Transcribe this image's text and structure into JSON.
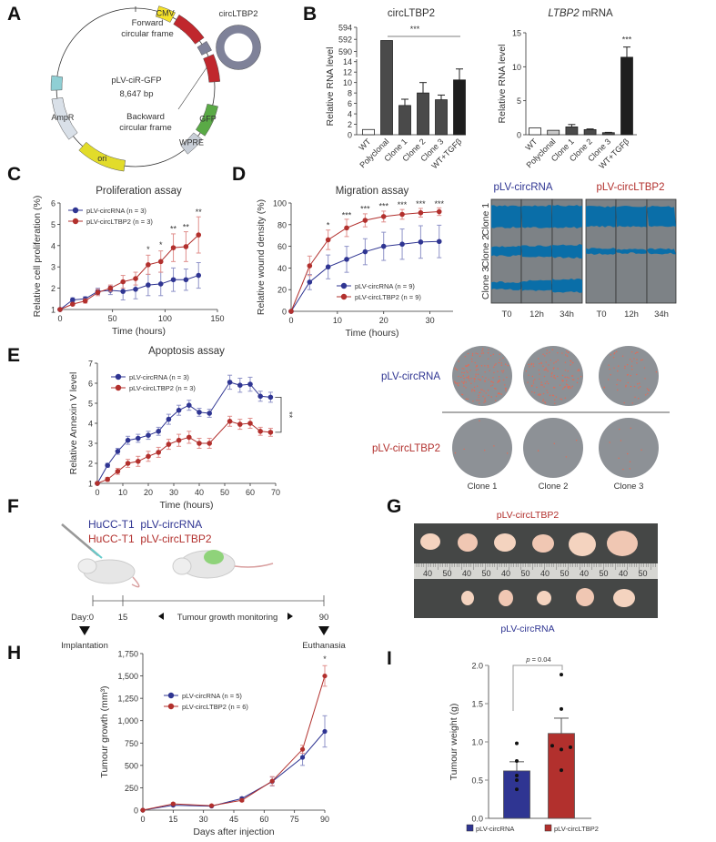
{
  "colors": {
    "blue": "#2f3592",
    "red": "#b2302d",
    "blue_light": "#8f93c8",
    "red_light": "#e08f8c"
  },
  "panel_letters": {
    "A": "A",
    "B": "B",
    "C": "C",
    "D": "D",
    "E": "E",
    "F": "F",
    "G": "G",
    "H": "H",
    "I": "I"
  },
  "plasmid": {
    "name": "pLV-ciR-GFP",
    "size": "8,647 bp",
    "forward_1": "Forward",
    "forward_2": "circular frame",
    "backward_1": "Backward",
    "backward_2": "circular frame",
    "circ_label": "circLTBP2",
    "features": [
      "CMV",
      "GFP",
      "WPRE",
      "ori",
      "AmpR"
    ]
  },
  "migration_images": {
    "group_labels": [
      "pLV-circRNA",
      "pLV-circLTBP2"
    ],
    "row_labels": [
      "Clone 1",
      "Clone 2",
      "Clone 3"
    ],
    "time_labels": [
      "T0",
      "12h",
      "34h",
      "T0",
      "12h",
      "34h"
    ]
  },
  "apoptosis_images": {
    "row_labels": [
      "pLV-circRNA",
      "pLV-circLTBP2"
    ],
    "col_labels": [
      "Clone 1",
      "Clone 2",
      "Clone 3"
    ]
  },
  "schema_f": {
    "line1": "HuCC-T1  pLV-circRNA",
    "line2": "HuCC-T1  pLV-circLTBP2",
    "day0": "Day:0",
    "day15": "15",
    "day90": "90",
    "monitoring": "Tumour growth monitoring",
    "implantation": "Implantation",
    "euthanasia": "Euthanasia"
  },
  "photo_g": {
    "top_label": "pLV-circLTBP2",
    "bottom_label": "pLV-circRNA",
    "ruler_marks": [
      "40",
      "50",
      "40",
      "50",
      "40",
      "50",
      "40",
      "50",
      "40",
      "50",
      "40",
      "50"
    ]
  },
  "chart_data": [
    {
      "id": "B1",
      "type": "bar",
      "title": "circLTBP2",
      "ylabel": "Relative RNA level",
      "categories": [
        "WT",
        "Polyclonal",
        "Clone 1",
        "Clone 2",
        "Clone 3",
        "WT+TGFβ"
      ],
      "values": [
        1,
        591.8,
        5.6,
        8.0,
        6.7,
        10.5
      ],
      "errors": [
        0,
        0,
        1.2,
        2.0,
        0.9,
        2.1
      ],
      "bar_colors": [
        "#ffffff",
        "#4a4a4a",
        "#4a4a4a",
        "#4a4a4a",
        "#4a4a4a",
        "#1e1e1e"
      ],
      "broken_axis": {
        "lower": [
          0,
          15
        ],
        "upper": [
          589,
          594
        ]
      },
      "yticks_lower": [
        0,
        2,
        4,
        6,
        8,
        10,
        12,
        14
      ],
      "yticks_upper": [
        590,
        592,
        594
      ],
      "significance": "***"
    },
    {
      "id": "B2",
      "type": "bar",
      "title_italic": "LTBP2",
      "title_rest": " mRNA",
      "ylabel": "Relative RNA level",
      "categories": [
        "WT",
        "Polyclonal",
        "Clone 1",
        "Clone 2",
        "Clone 3",
        "WT+TGFβ"
      ],
      "values": [
        1.0,
        0.65,
        1.15,
        0.75,
        0.3,
        11.4
      ],
      "errors": [
        0,
        0,
        0.35,
        0.1,
        0.05,
        1.5
      ],
      "bar_colors": [
        "#ffffff",
        "#c8c8c8",
        "#4a4a4a",
        "#4a4a4a",
        "#4a4a4a",
        "#1e1e1e"
      ],
      "ylim": [
        0,
        15
      ],
      "yticks": [
        0,
        5,
        10,
        15
      ],
      "annotations": [
        {
          "x": 5,
          "y": 13.6,
          "text": "***"
        }
      ]
    },
    {
      "id": "C",
      "type": "line",
      "title": "Proliferation assay",
      "xlabel": "Time (hours)",
      "ylabel": "Relative cell proliferation (%)",
      "xlim": [
        0,
        150
      ],
      "ylim": [
        1,
        6
      ],
      "xticks": [
        0,
        50,
        100,
        150
      ],
      "yticks": [
        1,
        2,
        3,
        4,
        5,
        6
      ],
      "x": [
        0,
        12,
        24,
        36,
        48,
        60,
        72,
        84,
        96,
        108,
        120,
        132
      ],
      "series": [
        {
          "name": "pLV-circRNA (n = 3)",
          "color": "blue",
          "values": [
            1,
            1.45,
            1.5,
            1.85,
            1.9,
            1.85,
            1.95,
            2.15,
            2.2,
            2.4,
            2.4,
            2.6
          ],
          "errors": [
            0,
            0.1,
            0.1,
            0.15,
            0.2,
            0.4,
            0.45,
            0.5,
            0.55,
            0.55,
            0.5,
            0.6
          ]
        },
        {
          "name": "pLV-circLTBP2 (n = 3)",
          "color": "red",
          "values": [
            1,
            1.25,
            1.4,
            1.8,
            2.0,
            2.3,
            2.45,
            3.1,
            3.25,
            3.9,
            3.95,
            4.5
          ],
          "errors": [
            0,
            0.05,
            0.1,
            0.15,
            0.15,
            0.3,
            0.3,
            0.45,
            0.5,
            0.65,
            0.7,
            0.85
          ]
        }
      ],
      "legend": "top-left",
      "annotations": [
        {
          "x": 84,
          "y": 3.7,
          "text": "*"
        },
        {
          "x": 96,
          "y": 3.9,
          "text": "*"
        },
        {
          "x": 108,
          "y": 4.65,
          "text": "**"
        },
        {
          "x": 120,
          "y": 4.75,
          "text": "**"
        },
        {
          "x": 132,
          "y": 5.45,
          "text": "**"
        }
      ]
    },
    {
      "id": "D",
      "type": "line",
      "title": "Migration assay",
      "xlabel": "Time (hours)",
      "ylabel": "Relative wound density (%)",
      "xlim": [
        0,
        35
      ],
      "ylim": [
        0,
        100
      ],
      "xticks": [
        0,
        10,
        20,
        30
      ],
      "yticks": [
        0,
        20,
        40,
        60,
        80,
        100
      ],
      "x": [
        0,
        4,
        8,
        12,
        16,
        20,
        24,
        28,
        32
      ],
      "series": [
        {
          "name": "pLV-circRNA (n = 9)",
          "color": "blue",
          "values": [
            0,
            27,
            41,
            48,
            55,
            60,
            62,
            64,
            64.5
          ],
          "errors": [
            0,
            7,
            11,
            12,
            12,
            13,
            14,
            15,
            15
          ]
        },
        {
          "name": "pLV-circLTBP2 (n = 9)",
          "color": "red",
          "values": [
            0,
            42,
            66,
            77,
            84,
            87.5,
            89.5,
            91,
            92
          ],
          "errors": [
            0,
            9,
            9,
            8,
            6,
            5,
            4.5,
            4,
            3.5
          ]
        }
      ],
      "legend": "bottom-right",
      "annotations": [
        {
          "x": 8,
          "y": 77,
          "text": "*"
        },
        {
          "x": 12,
          "y": 86,
          "text": "***"
        },
        {
          "x": 16,
          "y": 92,
          "text": "***"
        },
        {
          "x": 20,
          "y": 94.5,
          "text": "***"
        },
        {
          "x": 24,
          "y": 96,
          "text": "***"
        },
        {
          "x": 28,
          "y": 96.5,
          "text": "***"
        },
        {
          "x": 32,
          "y": 96.5,
          "text": "***"
        }
      ]
    },
    {
      "id": "E",
      "type": "line",
      "title": "Apoptosis assay",
      "xlabel": "Time (hours)",
      "ylabel": "Relative Annexin V level",
      "xlim": [
        0,
        70
      ],
      "ylim": [
        1,
        7
      ],
      "xticks": [
        0,
        10,
        20,
        30,
        40,
        50,
        60,
        70
      ],
      "yticks": [
        1,
        2,
        3,
        4,
        5,
        6,
        7
      ],
      "x": [
        0,
        4,
        8,
        12,
        16,
        20,
        24,
        28,
        32,
        36,
        40,
        44,
        52,
        56,
        60,
        64,
        68
      ],
      "series": [
        {
          "name": "pLV-circRNA (n = 3)",
          "color": "blue",
          "values": [
            1,
            1.9,
            2.6,
            3.15,
            3.25,
            3.4,
            3.6,
            4.2,
            4.65,
            4.9,
            4.55,
            4.5,
            6.05,
            5.9,
            5.95,
            5.35,
            5.3
          ],
          "errors": [
            0,
            0.1,
            0.15,
            0.2,
            0.2,
            0.2,
            0.2,
            0.25,
            0.25,
            0.25,
            0.2,
            0.2,
            0.35,
            0.35,
            0.35,
            0.25,
            0.25
          ]
        },
        {
          "name": "pLV-circLTBP2 (n = 3)",
          "color": "red",
          "values": [
            1,
            1.2,
            1.6,
            2.0,
            2.1,
            2.35,
            2.55,
            2.95,
            3.15,
            3.3,
            3.0,
            3.0,
            4.1,
            3.95,
            4.0,
            3.6,
            3.55
          ],
          "errors": [
            0,
            0.1,
            0.15,
            0.2,
            0.25,
            0.25,
            0.25,
            0.25,
            0.3,
            0.3,
            0.25,
            0.25,
            0.25,
            0.25,
            0.25,
            0.2,
            0.2
          ]
        }
      ],
      "legend": "top-left",
      "bracket": {
        "y1": 5.3,
        "y2": 3.55,
        "text": "**"
      }
    },
    {
      "id": "H",
      "type": "line",
      "xlabel": "Days after injection",
      "ylabel": "Tumour growth (mm³)",
      "xlim": [
        0,
        90
      ],
      "ylim": [
        0,
        1750
      ],
      "xticks": [
        0,
        15,
        30,
        45,
        60,
        75,
        90
      ],
      "yticks": [
        0,
        250,
        500,
        750,
        1000,
        1250,
        1500,
        1750
      ],
      "yticklabels": [
        "0",
        "250",
        "500",
        "750",
        "1,000",
        "1,250",
        "1,500",
        "1,750"
      ],
      "x": [
        0,
        15,
        34,
        49,
        64,
        79,
        90
      ],
      "series": [
        {
          "name": "pLV-circRNA (n = 5)",
          "color": "blue",
          "values": [
            0,
            55,
            45,
            130,
            320,
            590,
            880
          ],
          "errors": [
            0,
            10,
            8,
            15,
            50,
            90,
            175
          ]
        },
        {
          "name": "pLV-circLTBP2 (n = 6)",
          "color": "red",
          "values": [
            0,
            70,
            50,
            110,
            325,
            680,
            1500
          ],
          "errors": [
            0,
            12,
            8,
            15,
            50,
            45,
            115
          ]
        }
      ],
      "legend": "top-left",
      "annotations": [
        {
          "x": 90,
          "y": 1660,
          "text": "*"
        }
      ]
    },
    {
      "id": "I",
      "type": "bar",
      "ylabel": "Tumour weight (g)",
      "categories": [
        "pLV-circRNA",
        "pLV-circLTBP2"
      ],
      "values": [
        0.62,
        1.11
      ],
      "errors": [
        0.12,
        0.2
      ],
      "points": [
        [
          0.98,
          0.75,
          0.56,
          0.5,
          0.38
        ],
        [
          1.88,
          1.43,
          0.95,
          0.9,
          0.93,
          0.63
        ]
      ],
      "bar_colors": [
        "blue",
        "red"
      ],
      "ylim": [
        0,
        2
      ],
      "yticks": [
        0,
        0.5,
        1.0,
        1.5,
        2.0
      ],
      "yticklabels": [
        "0.0",
        "0.5",
        "1.0",
        "1.5",
        "2.0"
      ],
      "p_italic": "p",
      "p_rest": " = 0.04",
      "legend": "bottom"
    }
  ]
}
